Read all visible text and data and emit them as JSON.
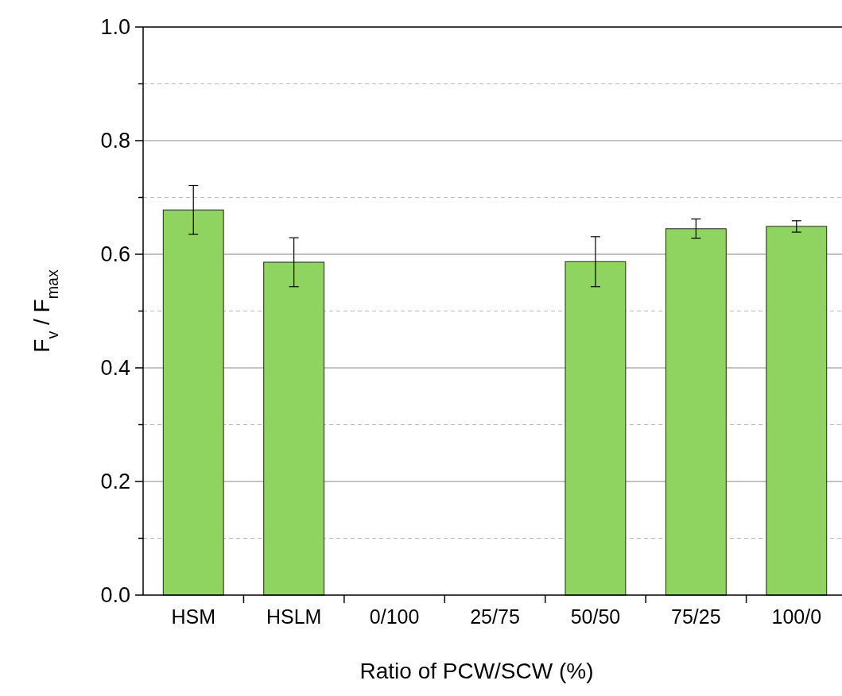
{
  "chart_data": {
    "type": "bar",
    "xlabel": "Ratio of PCW/SCW (%)",
    "ylabel": "F$_{v}$ / F$_{max}$",
    "categories": [
      "HSM",
      "HSLM",
      "0/100",
      "25/75",
      "50/50",
      "75/25",
      "100/0"
    ],
    "values": [
      0.678,
      0.586,
      null,
      null,
      0.587,
      0.645,
      0.649
    ],
    "errors": [
      0.043,
      0.043,
      null,
      null,
      0.044,
      0.017,
      0.01
    ],
    "color": "#8fd460",
    "ylim": [
      0,
      1
    ],
    "yticks": [
      {
        "value": 0,
        "label": "0.0"
      },
      {
        "value": 0.1,
        "label": null
      },
      {
        "value": 0.2,
        "label": "0.2"
      },
      {
        "value": 0.3,
        "label": null
      },
      {
        "value": 0.4,
        "label": "0.4"
      },
      {
        "value": 0.5,
        "label": null
      },
      {
        "value": 0.6,
        "label": "0.6"
      },
      {
        "value": 0.7,
        "label": null
      },
      {
        "value": 0.8,
        "label": "0.8"
      },
      {
        "value": 0.9,
        "label": null
      },
      {
        "value": 1,
        "label": "1.0"
      }
    ],
    "grid": "y"
  }
}
